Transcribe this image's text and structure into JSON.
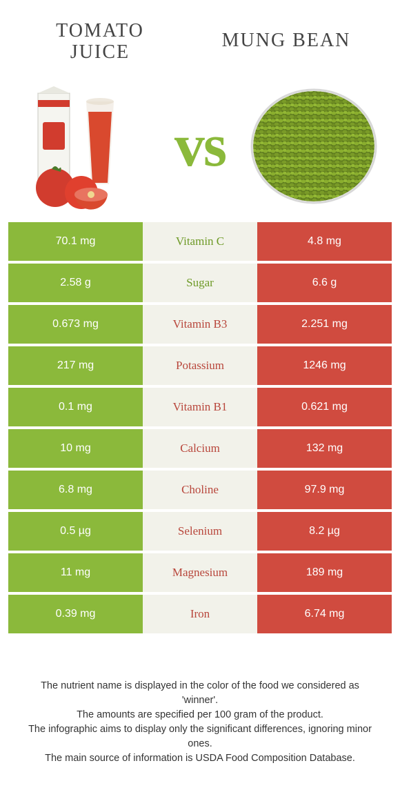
{
  "header": {
    "left_title": "Tomato juice",
    "right_title": "Mung bean",
    "vs": "vs"
  },
  "colors": {
    "left": "#8bb93b",
    "right": "#d04b3f",
    "mid_bg": "#f2f2ea",
    "label_left": "#6e9a27",
    "label_right": "#b8463b"
  },
  "rows": [
    {
      "left": "70.1 mg",
      "label": "Vitamin C",
      "right": "4.8 mg",
      "winner": "left"
    },
    {
      "left": "2.58 g",
      "label": "Sugar",
      "right": "6.6 g",
      "winner": "left"
    },
    {
      "left": "0.673 mg",
      "label": "Vitamin B3",
      "right": "2.251 mg",
      "winner": "right"
    },
    {
      "left": "217 mg",
      "label": "Potassium",
      "right": "1246 mg",
      "winner": "right"
    },
    {
      "left": "0.1 mg",
      "label": "Vitamin B1",
      "right": "0.621 mg",
      "winner": "right"
    },
    {
      "left": "10 mg",
      "label": "Calcium",
      "right": "132 mg",
      "winner": "right"
    },
    {
      "left": "6.8 mg",
      "label": "Choline",
      "right": "97.9 mg",
      "winner": "right"
    },
    {
      "left": "0.5 µg",
      "label": "Selenium",
      "right": "8.2 µg",
      "winner": "right"
    },
    {
      "left": "11 mg",
      "label": "Magnesium",
      "right": "189 mg",
      "winner": "right"
    },
    {
      "left": "0.39 mg",
      "label": "Iron",
      "right": "6.74 mg",
      "winner": "right"
    }
  ],
  "footer": {
    "line1": "The nutrient name is displayed in the color of the food we considered as 'winner'.",
    "line2": "The amounts are specified per 100 gram of the product.",
    "line3": "The infographic aims to display only the significant differences, ignoring minor ones.",
    "line4": "The main source of information is USDA Food Composition Database."
  }
}
